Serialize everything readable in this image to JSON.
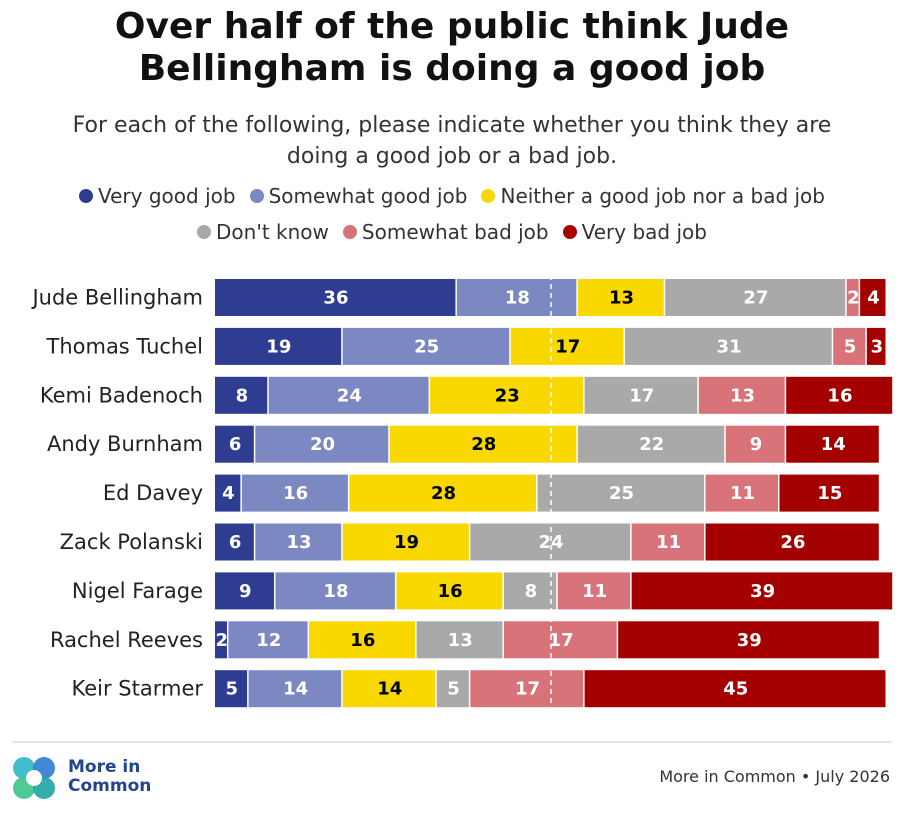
{
  "chart_data": {
    "type": "stacked_bar",
    "title": "Over half of the public think Jude Bellingham is doing a good job",
    "subtitle": "For each of the following, please indicate whether you think they are doing a good job or a bad job.",
    "categories": [
      "Jude Bellingham",
      "Thomas Tuchel",
      "Kemi Badenoch",
      "Andy Burnham",
      "Ed Davey",
      "Zack Polanski",
      "Nigel Farage",
      "Rachel Reeves",
      "Keir Starmer"
    ],
    "series": [
      {
        "name": "Very good job",
        "color": "#2e3d92",
        "values": [
          36,
          19,
          8,
          6,
          4,
          6,
          9,
          2,
          5
        ]
      },
      {
        "name": "Somewhat good job",
        "color": "#7b88c2",
        "values": [
          18,
          25,
          24,
          20,
          16,
          13,
          18,
          12,
          14
        ]
      },
      {
        "name": "Neither a good job nor a bad job",
        "color": "#f9d800",
        "values": [
          13,
          17,
          23,
          28,
          28,
          19,
          16,
          16,
          14
        ]
      },
      {
        "name": "Don't know",
        "color": "#a9a9a9",
        "values": [
          27,
          31,
          17,
          22,
          25,
          24,
          8,
          13,
          5
        ]
      },
      {
        "name": "Somewhat bad job",
        "color": "#d8737a",
        "values": [
          2,
          5,
          13,
          9,
          11,
          11,
          11,
          17,
          17
        ]
      },
      {
        "name": "Very bad job",
        "color": "#a50000",
        "values": [
          4,
          3,
          16,
          14,
          15,
          26,
          39,
          39,
          45
        ]
      }
    ],
    "xlim": [
      0,
      100
    ],
    "source": "More in Common • July 2026"
  },
  "logo": "More in Common"
}
